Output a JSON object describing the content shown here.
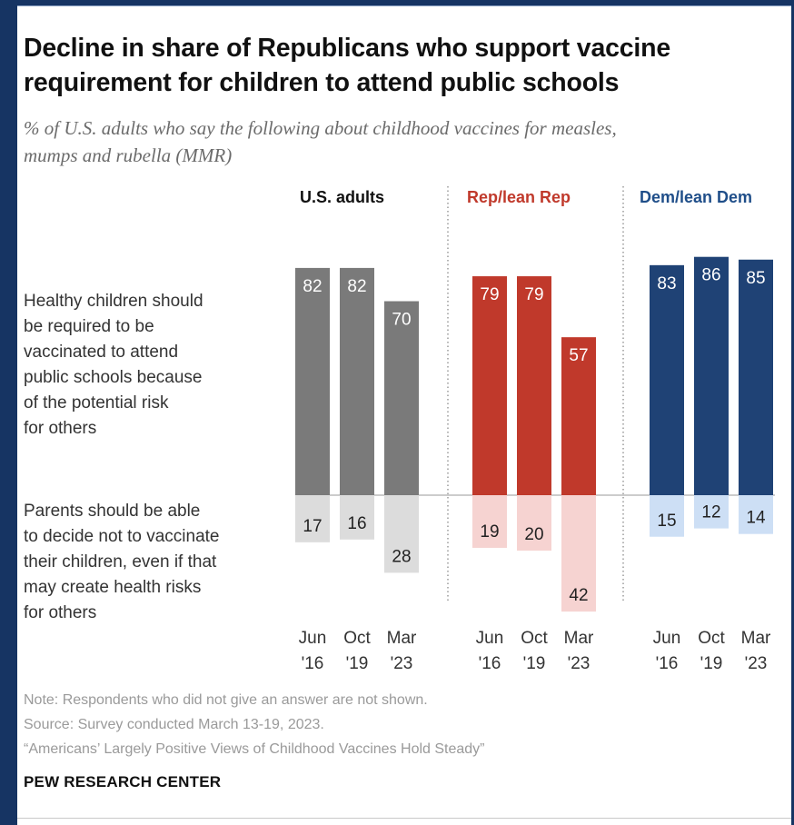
{
  "title_lines": [
    "Decline in share of Republicans who support vaccine",
    "requirement for children to attend public schools"
  ],
  "subtitle_lines": [
    "% of U.S. adults who say the following about childhood vaccines for measles,",
    "mumps and rubella (MMR)"
  ],
  "row_labels": {
    "support": [
      "Healthy children should",
      "be required to be",
      "vaccinated to attend",
      "public schools because",
      "of the potential risk",
      "for others"
    ],
    "oppose": [
      "Parents should be able",
      "to decide not to vaccinate",
      "their children, even if that",
      "may create health risks",
      "for others"
    ]
  },
  "notes": [
    "Note: Respondents who did not give an answer are not shown.",
    "Source: Survey conducted March 13-19, 2023.",
    "“Americans’ Largely Positive Views of Childhood Vaccines Hold Steady”"
  ],
  "brand": "PEW RESEARCH CENTER",
  "chart_data": {
    "type": "bar",
    "layout": "diverging-vertical",
    "x_month": [
      "Jun",
      "Oct",
      "Mar"
    ],
    "x_year": [
      "'16",
      "'19",
      "'23"
    ],
    "groups": [
      {
        "name": "U.S. adults",
        "label_color": "#111111",
        "bar_color": "#7a7a7a",
        "light_color": "#dcdcdc",
        "support": [
          82,
          82,
          70
        ],
        "oppose": [
          17,
          16,
          28
        ]
      },
      {
        "name": "Rep/lean Rep",
        "label_color": "#c0392b",
        "bar_color": "#c0392b",
        "light_color": "#f6d3d1",
        "support": [
          79,
          79,
          57
        ],
        "oppose": [
          19,
          20,
          42
        ]
      },
      {
        "name": "Dem/lean Dem",
        "label_color": "#1f4e89",
        "bar_color": "#1f4275",
        "light_color": "#cddff5",
        "support": [
          83,
          86,
          85
        ],
        "oppose": [
          15,
          12,
          14
        ]
      }
    ]
  }
}
